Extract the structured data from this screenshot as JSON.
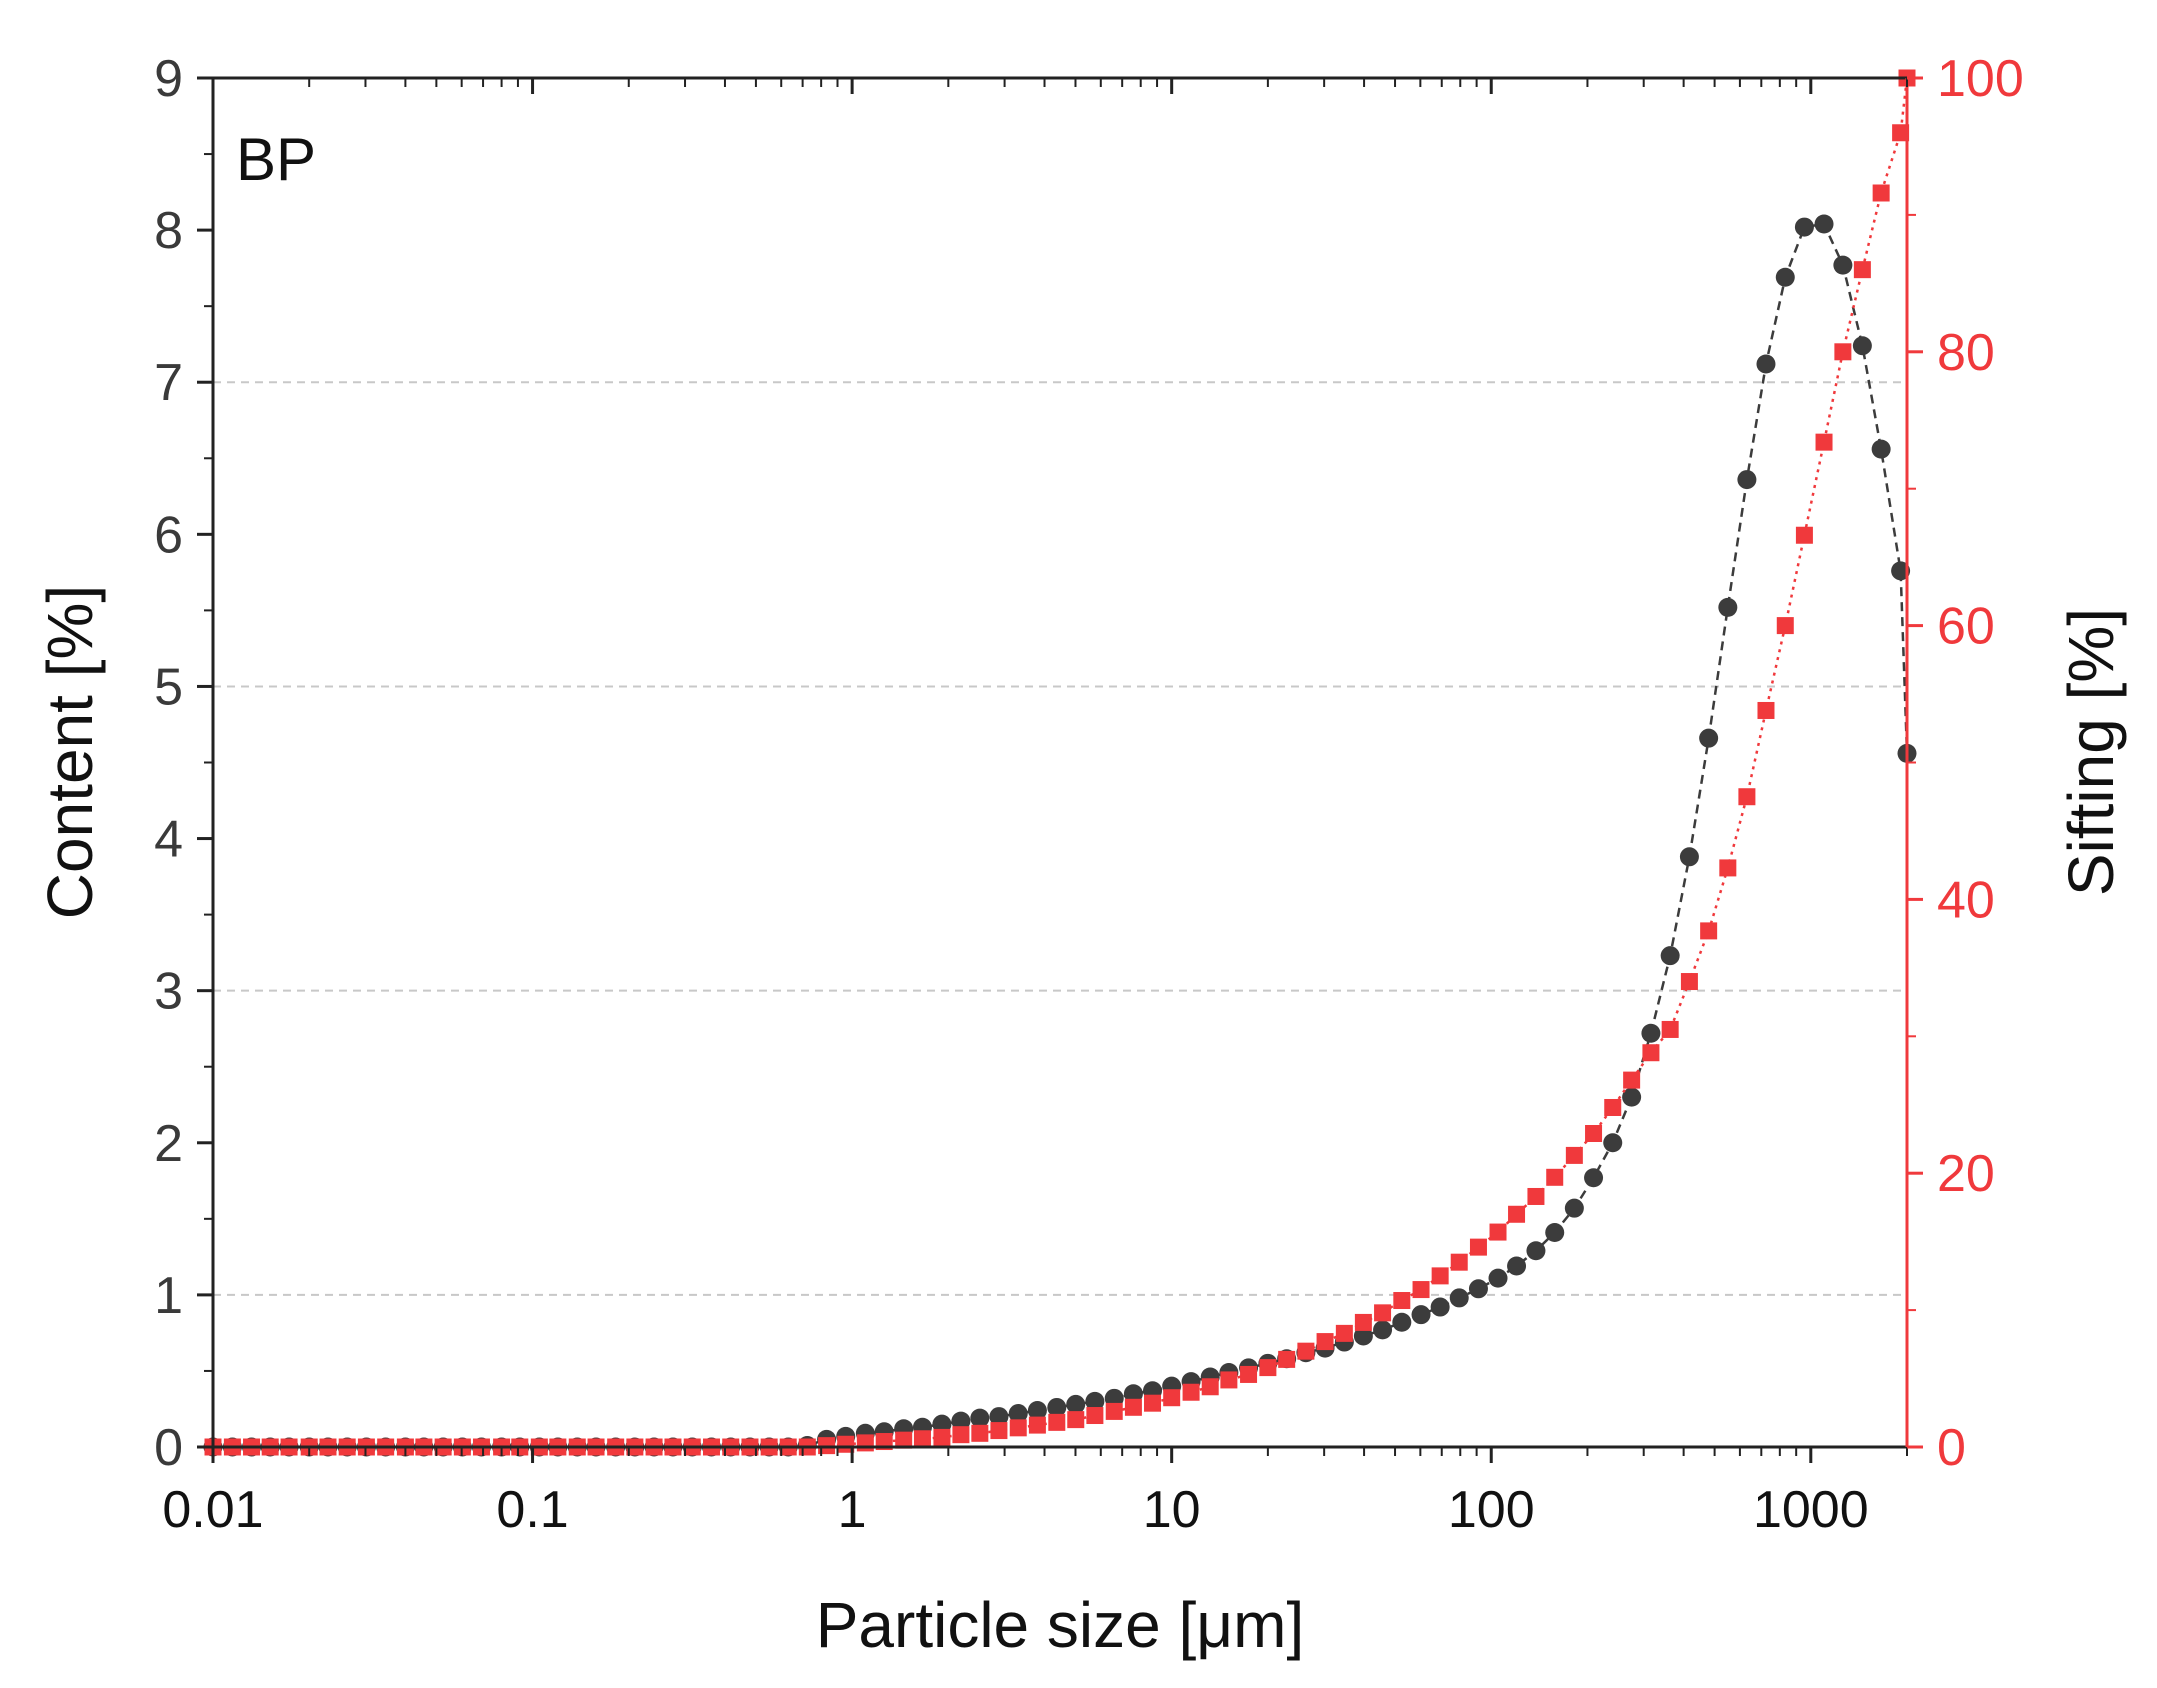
{
  "chart_data": {
    "type": "scatter",
    "panel_label": "BP",
    "xlabel": "Particle size [μm]",
    "ylabel_left": "Content [%]",
    "ylabel_right": "Sifting [%]",
    "x_scale": "log",
    "xlim": [
      0.01,
      2000
    ],
    "ylim_left": [
      0,
      9
    ],
    "ylim_right": [
      0,
      100
    ],
    "x_ticks": [
      {
        "v": 0.01,
        "label": "0.01"
      },
      {
        "v": 0.1,
        "label": "0.1"
      },
      {
        "v": 1,
        "label": "1"
      },
      {
        "v": 10,
        "label": "10"
      },
      {
        "v": 100,
        "label": "100"
      },
      {
        "v": 1000,
        "label": "1000"
      }
    ],
    "y_left_ticks": [
      {
        "v": 0,
        "label": "0"
      },
      {
        "v": 1,
        "label": "1"
      },
      {
        "v": 2,
        "label": "2"
      },
      {
        "v": 3,
        "label": "3"
      },
      {
        "v": 4,
        "label": "4"
      },
      {
        "v": 5,
        "label": "5"
      },
      {
        "v": 6,
        "label": "6"
      },
      {
        "v": 7,
        "label": "7"
      },
      {
        "v": 8,
        "label": "8"
      },
      {
        "v": 9,
        "label": "9"
      }
    ],
    "y_right_ticks": [
      {
        "v": 0,
        "label": "0"
      },
      {
        "v": 20,
        "label": "20"
      },
      {
        "v": 40,
        "label": "40"
      },
      {
        "v": 60,
        "label": "60"
      },
      {
        "v": 80,
        "label": "80"
      },
      {
        "v": 100,
        "label": "100"
      }
    ],
    "gridlines_left": [
      1,
      3,
      5,
      7
    ],
    "colors": {
      "content": "#3c3c3c",
      "sifting": "#f0393c",
      "grid": "#c8c8c8",
      "axis": "#222222"
    },
    "series": [
      {
        "axis": "left",
        "marker": "circle",
        "line": "dashed",
        "points": [
          [
            0.01,
            0.0
          ],
          [
            0.0115,
            0.0
          ],
          [
            0.0132,
            0.0
          ],
          [
            0.0151,
            0.0
          ],
          [
            0.0173,
            0.0
          ],
          [
            0.02,
            0.0
          ],
          [
            0.0229,
            0.0
          ],
          [
            0.0263,
            0.0
          ],
          [
            0.0302,
            0.0
          ],
          [
            0.0347,
            0.0
          ],
          [
            0.04,
            0.0
          ],
          [
            0.0457,
            0.0
          ],
          [
            0.0525,
            0.0
          ],
          [
            0.0603,
            0.0
          ],
          [
            0.0692,
            0.0
          ],
          [
            0.08,
            0.0
          ],
          [
            0.0912,
            0.0
          ],
          [
            0.105,
            0.0
          ],
          [
            0.12,
            0.0
          ],
          [
            0.138,
            0.0
          ],
          [
            0.158,
            0.0
          ],
          [
            0.182,
            0.0
          ],
          [
            0.209,
            0.0
          ],
          [
            0.24,
            0.0
          ],
          [
            0.275,
            0.0
          ],
          [
            0.316,
            0.0
          ],
          [
            0.363,
            0.0
          ],
          [
            0.417,
            0.0
          ],
          [
            0.479,
            0.0
          ],
          [
            0.55,
            0.0
          ],
          [
            0.631,
            0.0
          ],
          [
            0.724,
            0.01
          ],
          [
            0.832,
            0.05
          ],
          [
            0.955,
            0.07
          ],
          [
            1.1,
            0.09
          ],
          [
            1.26,
            0.1
          ],
          [
            1.45,
            0.12
          ],
          [
            1.66,
            0.13
          ],
          [
            1.91,
            0.15
          ],
          [
            2.19,
            0.17
          ],
          [
            2.51,
            0.19
          ],
          [
            2.88,
            0.2
          ],
          [
            3.31,
            0.22
          ],
          [
            3.8,
            0.24
          ],
          [
            4.37,
            0.26
          ],
          [
            5.01,
            0.28
          ],
          [
            5.75,
            0.3
          ],
          [
            6.61,
            0.32
          ],
          [
            7.59,
            0.35
          ],
          [
            8.71,
            0.37
          ],
          [
            10.0,
            0.4
          ],
          [
            11.5,
            0.43
          ],
          [
            13.2,
            0.46
          ],
          [
            15.1,
            0.49
          ],
          [
            17.4,
            0.52
          ],
          [
            20.0,
            0.55
          ],
          [
            22.9,
            0.58
          ],
          [
            26.3,
            0.62
          ],
          [
            30.2,
            0.65
          ],
          [
            34.7,
            0.69
          ],
          [
            39.8,
            0.73
          ],
          [
            45.7,
            0.77
          ],
          [
            52.5,
            0.82
          ],
          [
            60.3,
            0.87
          ],
          [
            69.2,
            0.92
          ],
          [
            79.4,
            0.98
          ],
          [
            91.2,
            1.04
          ],
          [
            105,
            1.11
          ],
          [
            120,
            1.19
          ],
          [
            138,
            1.29
          ],
          [
            158,
            1.41
          ],
          [
            182,
            1.57
          ],
          [
            209,
            1.77
          ],
          [
            240,
            2.0
          ],
          [
            275,
            2.3
          ],
          [
            316,
            2.72
          ],
          [
            363,
            3.23
          ],
          [
            417,
            3.88
          ],
          [
            479,
            4.66
          ],
          [
            550,
            5.52
          ],
          [
            631,
            6.36
          ],
          [
            724,
            7.12
          ],
          [
            832,
            7.69
          ],
          [
            955,
            8.02
          ],
          [
            1100,
            8.04
          ],
          [
            1260,
            7.77
          ],
          [
            1450,
            7.24
          ],
          [
            1660,
            6.56
          ],
          [
            1910,
            5.76
          ],
          [
            2000,
            4.56
          ]
        ]
      },
      {
        "axis": "right",
        "marker": "square",
        "line": "dotted",
        "points": [
          [
            0.01,
            0.0
          ],
          [
            0.0115,
            0.0
          ],
          [
            0.0132,
            0.0
          ],
          [
            0.0151,
            0.0
          ],
          [
            0.0173,
            0.0
          ],
          [
            0.02,
            0.0
          ],
          [
            0.0229,
            0.0
          ],
          [
            0.0263,
            0.0
          ],
          [
            0.0302,
            0.0
          ],
          [
            0.0347,
            0.0
          ],
          [
            0.04,
            0.0
          ],
          [
            0.0457,
            0.0
          ],
          [
            0.0525,
            0.0
          ],
          [
            0.0603,
            0.0
          ],
          [
            0.0692,
            0.0
          ],
          [
            0.08,
            0.0
          ],
          [
            0.0912,
            0.0
          ],
          [
            0.105,
            0.0
          ],
          [
            0.12,
            0.0
          ],
          [
            0.138,
            0.0
          ],
          [
            0.158,
            0.0
          ],
          [
            0.182,
            0.0
          ],
          [
            0.209,
            0.0
          ],
          [
            0.24,
            0.0
          ],
          [
            0.275,
            0.0
          ],
          [
            0.316,
            0.0
          ],
          [
            0.363,
            0.0
          ],
          [
            0.417,
            0.0
          ],
          [
            0.479,
            0.0
          ],
          [
            0.55,
            0.0
          ],
          [
            0.631,
            0.0
          ],
          [
            0.724,
            0.0
          ],
          [
            0.832,
            0.1
          ],
          [
            0.955,
            0.2
          ],
          [
            1.1,
            0.3
          ],
          [
            1.26,
            0.4
          ],
          [
            1.45,
            0.5
          ],
          [
            1.66,
            0.6
          ],
          [
            1.91,
            0.7
          ],
          [
            2.19,
            0.9
          ],
          [
            2.51,
            1.0
          ],
          [
            2.88,
            1.2
          ],
          [
            3.31,
            1.4
          ],
          [
            3.8,
            1.6
          ],
          [
            4.37,
            1.8
          ],
          [
            5.01,
            2.0
          ],
          [
            5.75,
            2.3
          ],
          [
            6.61,
            2.6
          ],
          [
            7.59,
            2.9
          ],
          [
            8.71,
            3.2
          ],
          [
            10.0,
            3.6
          ],
          [
            11.5,
            4.0
          ],
          [
            13.2,
            4.4
          ],
          [
            15.1,
            4.9
          ],
          [
            17.4,
            5.3
          ],
          [
            20.0,
            5.8
          ],
          [
            22.9,
            6.4
          ],
          [
            26.3,
            7.0
          ],
          [
            30.2,
            7.7
          ],
          [
            34.7,
            8.3
          ],
          [
            39.8,
            9.1
          ],
          [
            45.7,
            9.8
          ],
          [
            52.5,
            10.7
          ],
          [
            60.3,
            11.5
          ],
          [
            69.2,
            12.5
          ],
          [
            79.4,
            13.5
          ],
          [
            91.2,
            14.6
          ],
          [
            105,
            15.7
          ],
          [
            120,
            17.0
          ],
          [
            138,
            18.3
          ],
          [
            158,
            19.7
          ],
          [
            182,
            21.3
          ],
          [
            209,
            22.9
          ],
          [
            240,
            24.8
          ],
          [
            275,
            26.8
          ],
          [
            316,
            28.8
          ],
          [
            363,
            30.5
          ],
          [
            417,
            34.0
          ],
          [
            479,
            37.7
          ],
          [
            550,
            42.3
          ],
          [
            631,
            47.5
          ],
          [
            724,
            53.8
          ],
          [
            832,
            60.0
          ],
          [
            955,
            66.6
          ],
          [
            1100,
            73.4
          ],
          [
            1260,
            80.0
          ],
          [
            1450,
            86.0
          ],
          [
            1660,
            91.6
          ],
          [
            1910,
            96.0
          ],
          [
            2000,
            100.0
          ]
        ]
      }
    ]
  }
}
